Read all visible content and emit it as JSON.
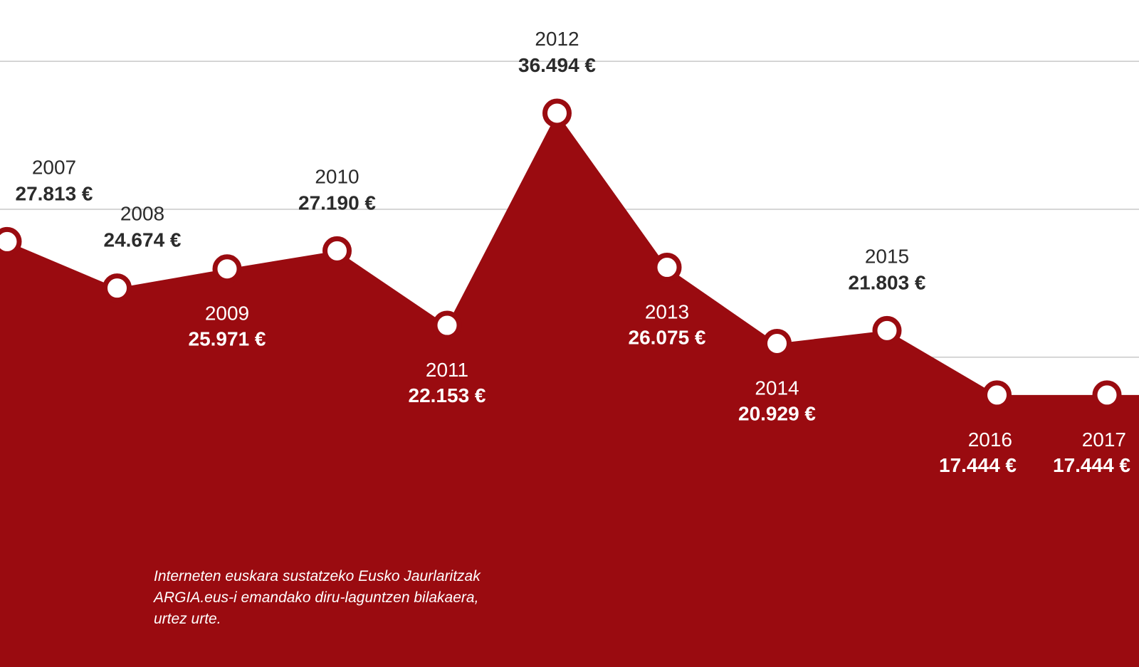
{
  "chart_data": {
    "type": "area",
    "title": "",
    "xlabel": "",
    "ylabel": "",
    "x": [
      "2007",
      "2008",
      "2009",
      "2010",
      "2011",
      "2012",
      "2013",
      "2014",
      "2015",
      "2016",
      "2017"
    ],
    "values": [
      27813,
      24674,
      25971,
      27190,
      22153,
      36494,
      26075,
      20929,
      21803,
      17444,
      17444
    ],
    "value_labels": [
      "27.813 €",
      "24.674 €",
      "25.971 €",
      "27.190 €",
      "22.153 €",
      "36.494 €",
      "26.075 €",
      "20.929 €",
      "21.803 €",
      "17.444 €",
      "17.444 €"
    ],
    "label_position": [
      "above",
      "above",
      "below",
      "above",
      "below",
      "above",
      "below",
      "below",
      "above",
      "below",
      "below"
    ],
    "ylim": [
      0,
      40000
    ],
    "grid": true,
    "colors": {
      "fill": "#9a0b10",
      "marker_fill": "#ffffff",
      "grid": "#c8c8c8",
      "text_dark": "#2b2b2b",
      "text_light": "#ffffff"
    }
  },
  "caption": {
    "lines": [
      "Interneten euskara sustatzeko Eusko Jaurlaritzak",
      "ARGIA.eus-i emandako diru-laguntzen bilakaera,",
      "urtez urte."
    ]
  }
}
